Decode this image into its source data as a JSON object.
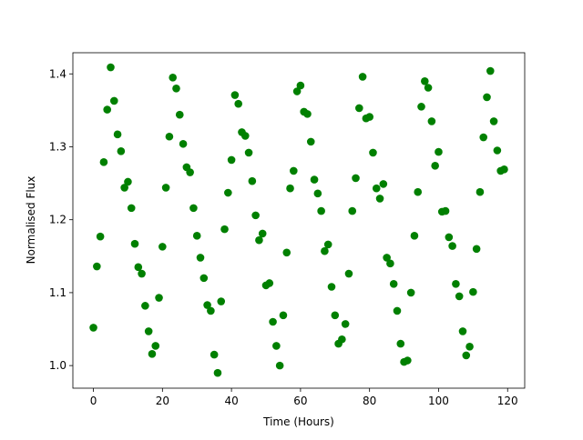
{
  "chart_data": {
    "type": "scatter",
    "xlabel": "Time (Hours)",
    "ylabel": "Normalised Flux",
    "color": "#008000",
    "x": [
      0,
      1,
      2,
      3,
      4,
      5,
      6,
      7,
      8,
      9,
      10,
      11,
      12,
      13,
      14,
      15,
      16,
      17,
      18,
      19,
      20,
      21,
      22,
      23,
      24,
      25,
      26,
      27,
      28,
      29,
      30,
      31,
      32,
      33,
      34,
      35,
      36,
      37,
      38,
      39,
      40,
      41,
      42,
      43,
      44,
      45,
      46,
      47,
      48,
      49,
      50,
      51,
      52,
      53,
      54,
      55,
      56,
      57,
      58,
      59,
      60,
      61,
      62,
      63,
      64,
      65,
      66,
      67,
      68,
      69,
      70,
      71,
      72,
      73,
      74,
      75,
      76,
      77,
      78,
      79,
      80,
      81,
      82,
      83,
      84,
      85,
      86,
      87,
      88,
      89,
      90,
      91,
      92,
      93,
      94,
      95,
      96,
      97,
      98,
      99,
      100,
      101,
      102,
      103,
      104,
      105,
      106,
      107,
      108,
      109,
      110,
      111,
      112,
      113,
      114,
      115,
      116,
      117,
      118,
      119
    ],
    "values": [
      1.052,
      1.136,
      1.177,
      1.279,
      1.351,
      1.409,
      1.363,
      1.317,
      1.294,
      1.244,
      1.252,
      1.216,
      1.167,
      1.135,
      1.126,
      1.082,
      1.047,
      1.016,
      1.027,
      1.093,
      1.163,
      1.244,
      1.314,
      1.395,
      1.38,
      1.344,
      1.304,
      1.272,
      1.265,
      1.216,
      1.178,
      1.148,
      1.12,
      1.083,
      1.075,
      1.015,
      0.99,
      1.088,
      1.187,
      1.237,
      1.282,
      1.371,
      1.359,
      1.32,
      1.315,
      1.292,
      1.253,
      1.206,
      1.172,
      1.181,
      1.11,
      1.113,
      1.06,
      1.027,
      1.0,
      1.069,
      1.155,
      1.243,
      1.267,
      1.376,
      1.384,
      1.348,
      1.345,
      1.307,
      1.255,
      1.236,
      1.212,
      1.157,
      1.166,
      1.108,
      1.069,
      1.03,
      1.036,
      1.057,
      1.126,
      1.212,
      1.257,
      1.353,
      1.396,
      1.339,
      1.341,
      1.292,
      1.243,
      1.229,
      1.249,
      1.148,
      1.14,
      1.112,
      1.075,
      1.03,
      1.005,
      1.007,
      1.1,
      1.178,
      1.238,
      1.355,
      1.39,
      1.381,
      1.335,
      1.274,
      1.293,
      1.211,
      1.212,
      1.176,
      1.164,
      1.112,
      1.095,
      1.047,
      1.014,
      1.026,
      1.101,
      1.16,
      1.238,
      1.313,
      1.368,
      1.404,
      1.335,
      1.295,
      1.267,
      1.269
    ],
    "xlim": [
      -5.95,
      124.95
    ],
    "ylim": [
      0.969,
      1.429
    ],
    "xticks": [
      0,
      20,
      40,
      60,
      80,
      100,
      120
    ],
    "yticks": [
      {
        "value": 1.0,
        "label": "1.0"
      },
      {
        "value": 1.1,
        "label": "1.1"
      },
      {
        "value": 1.2,
        "label": "1.2"
      },
      {
        "value": 1.3,
        "label": "1.3"
      },
      {
        "value": 1.4,
        "label": "1.4"
      }
    ]
  }
}
